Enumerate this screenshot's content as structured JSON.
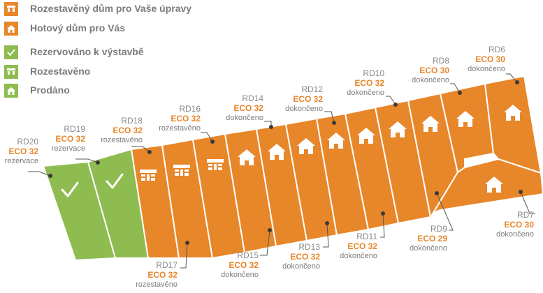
{
  "colors": {
    "orange": "#e8862a",
    "green": "#8fbc50",
    "legend_text": "#7b7b7b",
    "lot_code": "#8a8a8a",
    "eco": "#e8862a"
  },
  "legend": [
    {
      "icon": "house-unfinished-icon",
      "color": "#e8862a",
      "label": "Rozestavěný dům pro Vaše úpravy"
    },
    {
      "icon": "house-icon",
      "color": "#e8862a",
      "label": "Hotový dům pro Vás"
    },
    {
      "icon": "check-icon",
      "color": "#8fbc50",
      "label": "Rezervováno k výstavbě"
    },
    {
      "icon": "house-unfinished-icon",
      "color": "#8fbc50",
      "label": "Rozestavěno"
    },
    {
      "icon": "house-icon",
      "color": "#8fbc50",
      "label": "Prodáno"
    }
  ],
  "lots": [
    {
      "id": "RD20",
      "eco": "ECO 32",
      "status": "rezervace",
      "state_color": "green",
      "icon": "check-icon"
    },
    {
      "id": "RD19",
      "eco": "ECO 32",
      "status": "rezervace",
      "state_color": "green",
      "icon": "check-icon"
    },
    {
      "id": "RD18",
      "eco": "ECO 32",
      "status": "rozestavěno",
      "state_color": "orange",
      "icon": "house-unfinished-icon"
    },
    {
      "id": "RD17",
      "eco": "ECO 32",
      "status": "rozestavěno",
      "state_color": "orange",
      "icon": "house-unfinished-icon"
    },
    {
      "id": "RD16",
      "eco": "ECO 32",
      "status": "rozestavěno",
      "state_color": "orange",
      "icon": "house-unfinished-icon"
    },
    {
      "id": "RD15",
      "eco": "ECO 32",
      "status": "dokončeno",
      "state_color": "orange",
      "icon": "house-icon"
    },
    {
      "id": "RD14",
      "eco": "ECO 32",
      "status": "dokončeno",
      "state_color": "orange",
      "icon": "house-icon"
    },
    {
      "id": "RD13",
      "eco": "ECO 32",
      "status": "dokončeno",
      "state_color": "orange",
      "icon": "house-icon"
    },
    {
      "id": "RD12",
      "eco": "ECO 32",
      "status": "dokončeno",
      "state_color": "orange",
      "icon": "house-icon"
    },
    {
      "id": "RD11",
      "eco": "ECO 32",
      "status": "dokončeno",
      "state_color": "orange",
      "icon": "house-icon"
    },
    {
      "id": "RD10",
      "eco": "ECO 32",
      "status": "dokončeno",
      "state_color": "orange",
      "icon": "house-icon"
    },
    {
      "id": "RD9",
      "eco": "ECO 29",
      "status": "dokončeno",
      "state_color": "orange",
      "icon": "house-icon"
    },
    {
      "id": "RD8",
      "eco": "ECO 30",
      "status": "dokončeno",
      "state_color": "orange",
      "icon": "house-icon"
    },
    {
      "id": "RD7",
      "eco": "ECO 30",
      "status": "dokončeno",
      "state_color": "orange",
      "icon": "house-icon"
    },
    {
      "id": "RD6",
      "eco": "ECO 30",
      "status": "dokončeno",
      "state_color": "orange",
      "icon": "house-icon"
    }
  ]
}
